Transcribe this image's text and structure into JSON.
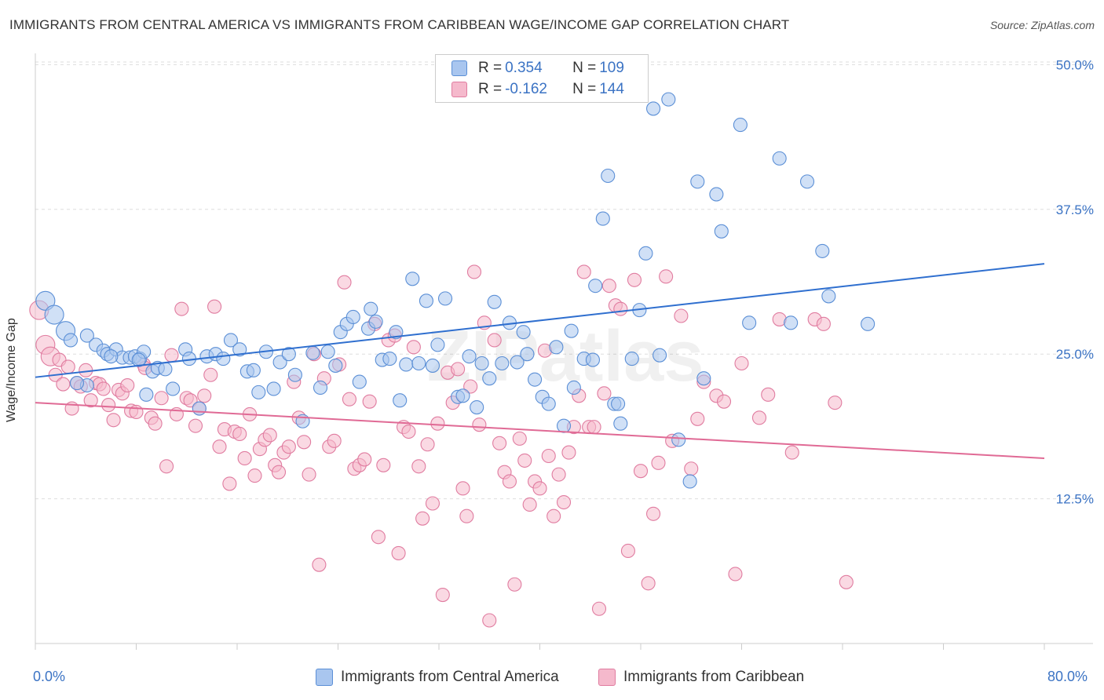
{
  "title": "IMMIGRANTS FROM CENTRAL AMERICA VS IMMIGRANTS FROM CARIBBEAN WAGE/INCOME GAP CORRELATION CHART",
  "source": "Source: ZipAtlas.com",
  "watermark": "ZIPatlas",
  "colors": {
    "blue_fill": "#a9c6ef",
    "blue_stroke": "#5b8fd6",
    "blue_line": "#2f6fcf",
    "pink_fill": "#f5b9cc",
    "pink_stroke": "#e07ca0",
    "pink_line": "#e06a95",
    "label": "#3b73c4",
    "grid": "#dddddd"
  },
  "legend": {
    "rows": [
      {
        "r_label": "R = ",
        "r_value": "0.354",
        "n_label": "N = ",
        "n_value": "109"
      },
      {
        "r_label": "R = ",
        "r_value": "-0.162",
        "n_label": "N = ",
        "n_value": "144"
      }
    ]
  },
  "bottom_legend": [
    "Immigrants from Central America",
    "Immigrants from Caribbean"
  ],
  "chart_data": {
    "type": "scatter",
    "title": "IMMIGRANTS FROM CENTRAL AMERICA VS IMMIGRANTS FROM CARIBBEAN WAGE/INCOME GAP CORRELATION CHART",
    "xlabel": "",
    "ylabel": "Wage/Income Gap",
    "xlim": [
      0,
      80
    ],
    "ylim": [
      0,
      50.5
    ],
    "x_tick_labels": [
      "0.0%",
      "80.0%"
    ],
    "y_ticks": [
      12.5,
      25.0,
      37.5,
      50.0
    ],
    "y_tick_labels": [
      "12.5%",
      "25.0%",
      "37.5%",
      "50.0%"
    ],
    "series": [
      {
        "name": "Immigrants from Central America",
        "trend": [
          [
            0,
            23.0
          ],
          [
            80,
            32.8
          ]
        ],
        "points": [
          [
            0.8,
            29.6
          ],
          [
            1.5,
            28.4
          ],
          [
            2.4,
            27.0
          ],
          [
            2.8,
            26.2
          ],
          [
            4.1,
            26.6
          ],
          [
            4.8,
            25.8
          ],
          [
            5.4,
            25.3
          ],
          [
            5.7,
            25.0
          ],
          [
            6.4,
            25.4
          ],
          [
            6.9,
            24.7
          ],
          [
            7.5,
            24.7
          ],
          [
            7.9,
            24.8
          ],
          [
            8.3,
            24.6
          ],
          [
            8.6,
            25.2
          ],
          [
            9.3,
            23.5
          ],
          [
            8.8,
            21.5
          ],
          [
            9.7,
            23.8
          ],
          [
            10.3,
            23.7
          ],
          [
            10.9,
            22.0
          ],
          [
            11.9,
            25.4
          ],
          [
            12.2,
            24.6
          ],
          [
            13.0,
            20.3
          ],
          [
            13.6,
            24.8
          ],
          [
            14.3,
            25.0
          ],
          [
            14.9,
            24.6
          ],
          [
            15.5,
            26.2
          ],
          [
            16.2,
            25.4
          ],
          [
            16.8,
            23.5
          ],
          [
            17.3,
            23.6
          ],
          [
            17.7,
            21.7
          ],
          [
            18.3,
            25.2
          ],
          [
            18.9,
            22.0
          ],
          [
            19.4,
            24.3
          ],
          [
            20.1,
            25.0
          ],
          [
            20.6,
            23.2
          ],
          [
            21.2,
            19.2
          ],
          [
            22.0,
            25.1
          ],
          [
            22.6,
            22.1
          ],
          [
            23.2,
            25.2
          ],
          [
            23.8,
            24.0
          ],
          [
            24.2,
            26.9
          ],
          [
            24.7,
            27.6
          ],
          [
            25.2,
            28.2
          ],
          [
            25.7,
            22.6
          ],
          [
            26.4,
            27.2
          ],
          [
            26.6,
            28.9
          ],
          [
            27.0,
            27.8
          ],
          [
            27.5,
            24.5
          ],
          [
            28.1,
            24.6
          ],
          [
            28.6,
            26.9
          ],
          [
            28.9,
            21.0
          ],
          [
            29.4,
            24.1
          ],
          [
            29.9,
            31.5
          ],
          [
            30.4,
            24.2
          ],
          [
            31.0,
            29.6
          ],
          [
            31.5,
            24.0
          ],
          [
            31.9,
            25.8
          ],
          [
            32.5,
            29.8
          ],
          [
            33.5,
            21.3
          ],
          [
            33.9,
            21.4
          ],
          [
            34.4,
            24.8
          ],
          [
            35.0,
            20.4
          ],
          [
            35.4,
            24.2
          ],
          [
            36.0,
            22.9
          ],
          [
            36.4,
            29.5
          ],
          [
            37.0,
            24.2
          ],
          [
            37.6,
            27.7
          ],
          [
            38.2,
            24.3
          ],
          [
            38.7,
            26.9
          ],
          [
            39.0,
            25.0
          ],
          [
            39.6,
            22.8
          ],
          [
            40.2,
            21.3
          ],
          [
            40.7,
            20.7
          ],
          [
            41.3,
            25.6
          ],
          [
            41.9,
            18.8
          ],
          [
            42.5,
            27.0
          ],
          [
            42.7,
            22.1
          ],
          [
            43.5,
            24.6
          ],
          [
            44.2,
            24.5
          ],
          [
            44.4,
            30.9
          ],
          [
            45.0,
            36.7
          ],
          [
            45.4,
            40.4
          ],
          [
            45.9,
            20.7
          ],
          [
            46.2,
            20.7
          ],
          [
            46.4,
            19.0
          ],
          [
            47.3,
            24.6
          ],
          [
            47.9,
            28.8
          ],
          [
            48.4,
            33.7
          ],
          [
            49.0,
            46.2
          ],
          [
            49.5,
            24.9
          ],
          [
            50.2,
            47.0
          ],
          [
            51.0,
            17.6
          ],
          [
            51.9,
            14.0
          ],
          [
            52.5,
            39.9
          ],
          [
            53.0,
            22.9
          ],
          [
            54.0,
            38.8
          ],
          [
            54.4,
            35.6
          ],
          [
            55.9,
            44.8
          ],
          [
            56.6,
            27.7
          ],
          [
            59.0,
            41.9
          ],
          [
            59.9,
            27.7
          ],
          [
            61.2,
            39.9
          ],
          [
            62.4,
            33.9
          ],
          [
            62.9,
            30.0
          ],
          [
            66.0,
            27.6
          ],
          [
            4.1,
            22.3
          ],
          [
            3.3,
            22.5
          ],
          [
            6.0,
            24.8
          ],
          [
            8.2,
            24.5
          ]
        ]
      },
      {
        "name": "Immigrants from Caribbean",
        "trend": [
          [
            0,
            20.8
          ],
          [
            80,
            16.0
          ]
        ],
        "points": [
          [
            0.3,
            28.8
          ],
          [
            0.8,
            25.8
          ],
          [
            1.2,
            24.8
          ],
          [
            1.6,
            23.2
          ],
          [
            1.9,
            24.5
          ],
          [
            2.2,
            22.4
          ],
          [
            2.6,
            23.9
          ],
          [
            2.9,
            20.3
          ],
          [
            3.3,
            22.5
          ],
          [
            3.6,
            22.2
          ],
          [
            4.0,
            23.6
          ],
          [
            4.4,
            21.0
          ],
          [
            4.8,
            22.5
          ],
          [
            5.1,
            22.4
          ],
          [
            5.4,
            22.0
          ],
          [
            5.8,
            20.6
          ],
          [
            6.2,
            19.3
          ],
          [
            6.6,
            21.9
          ],
          [
            6.9,
            21.6
          ],
          [
            7.3,
            22.3
          ],
          [
            7.6,
            20.1
          ],
          [
            8.0,
            20.0
          ],
          [
            8.6,
            24.1
          ],
          [
            8.7,
            23.8
          ],
          [
            9.2,
            19.5
          ],
          [
            9.5,
            19.0
          ],
          [
            10.0,
            21.2
          ],
          [
            10.4,
            15.3
          ],
          [
            10.8,
            24.9
          ],
          [
            11.2,
            19.8
          ],
          [
            11.6,
            28.9
          ],
          [
            12.0,
            21.2
          ],
          [
            12.3,
            21.0
          ],
          [
            12.7,
            18.8
          ],
          [
            13.0,
            20.3
          ],
          [
            13.4,
            21.4
          ],
          [
            13.9,
            23.2
          ],
          [
            14.2,
            29.1
          ],
          [
            14.6,
            17.0
          ],
          [
            15.0,
            18.5
          ],
          [
            15.4,
            13.8
          ],
          [
            15.8,
            18.3
          ],
          [
            16.2,
            18.1
          ],
          [
            16.6,
            16.0
          ],
          [
            17.0,
            19.8
          ],
          [
            17.4,
            14.5
          ],
          [
            17.8,
            16.8
          ],
          [
            18.2,
            17.6
          ],
          [
            18.6,
            18.0
          ],
          [
            19.0,
            15.4
          ],
          [
            19.3,
            14.8
          ],
          [
            19.7,
            16.5
          ],
          [
            20.1,
            17.0
          ],
          [
            20.5,
            22.6
          ],
          [
            20.9,
            19.5
          ],
          [
            21.3,
            17.4
          ],
          [
            21.7,
            14.6
          ],
          [
            22.1,
            25.0
          ],
          [
            22.5,
            6.8
          ],
          [
            22.9,
            22.9
          ],
          [
            23.3,
            17.0
          ],
          [
            23.7,
            17.5
          ],
          [
            24.1,
            24.1
          ],
          [
            24.5,
            31.2
          ],
          [
            24.9,
            21.1
          ],
          [
            25.3,
            15.1
          ],
          [
            25.7,
            15.4
          ],
          [
            26.1,
            15.9
          ],
          [
            26.5,
            20.9
          ],
          [
            26.9,
            27.6
          ],
          [
            27.2,
            9.2
          ],
          [
            27.6,
            15.4
          ],
          [
            28.0,
            26.2
          ],
          [
            28.5,
            26.6
          ],
          [
            28.8,
            7.8
          ],
          [
            29.2,
            18.7
          ],
          [
            29.6,
            18.3
          ],
          [
            30.0,
            25.6
          ],
          [
            30.4,
            15.3
          ],
          [
            30.7,
            10.8
          ],
          [
            31.1,
            17.2
          ],
          [
            31.5,
            12.1
          ],
          [
            31.9,
            19.0
          ],
          [
            32.3,
            4.2
          ],
          [
            32.7,
            23.4
          ],
          [
            33.1,
            20.8
          ],
          [
            33.5,
            23.7
          ],
          [
            33.9,
            13.4
          ],
          [
            34.2,
            11.0
          ],
          [
            34.5,
            22.2
          ],
          [
            34.8,
            32.1
          ],
          [
            35.2,
            18.9
          ],
          [
            35.6,
            27.7
          ],
          [
            36.0,
            2.0
          ],
          [
            36.4,
            26.2
          ],
          [
            36.8,
            17.3
          ],
          [
            37.2,
            14.8
          ],
          [
            37.6,
            14.0
          ],
          [
            38.0,
            5.1
          ],
          [
            38.4,
            17.7
          ],
          [
            38.8,
            15.8
          ],
          [
            39.2,
            12.0
          ],
          [
            39.6,
            14.0
          ],
          [
            40.0,
            13.4
          ],
          [
            40.4,
            25.3
          ],
          [
            40.7,
            16.2
          ],
          [
            41.1,
            11.0
          ],
          [
            41.5,
            14.6
          ],
          [
            41.9,
            12.2
          ],
          [
            42.3,
            16.5
          ],
          [
            42.7,
            18.7
          ],
          [
            43.1,
            21.4
          ],
          [
            43.5,
            32.1
          ],
          [
            43.9,
            18.7
          ],
          [
            44.3,
            18.7
          ],
          [
            44.7,
            3.0
          ],
          [
            45.1,
            21.6
          ],
          [
            45.5,
            30.9
          ],
          [
            46.0,
            29.2
          ],
          [
            46.4,
            28.9
          ],
          [
            47.0,
            8.0
          ],
          [
            47.5,
            31.4
          ],
          [
            48.0,
            14.9
          ],
          [
            48.6,
            5.2
          ],
          [
            49.0,
            11.2
          ],
          [
            49.4,
            15.6
          ],
          [
            50.0,
            31.7
          ],
          [
            50.5,
            17.5
          ],
          [
            51.2,
            28.3
          ],
          [
            52.0,
            15.1
          ],
          [
            52.5,
            19.4
          ],
          [
            53.0,
            22.6
          ],
          [
            54.0,
            21.4
          ],
          [
            54.6,
            20.9
          ],
          [
            55.5,
            6.0
          ],
          [
            56.0,
            24.2
          ],
          [
            57.4,
            19.5
          ],
          [
            58.1,
            21.5
          ],
          [
            59.0,
            28.0
          ],
          [
            60.0,
            16.5
          ],
          [
            61.8,
            28.0
          ],
          [
            62.5,
            27.6
          ],
          [
            63.4,
            20.8
          ],
          [
            64.3,
            5.3
          ]
        ]
      }
    ]
  }
}
